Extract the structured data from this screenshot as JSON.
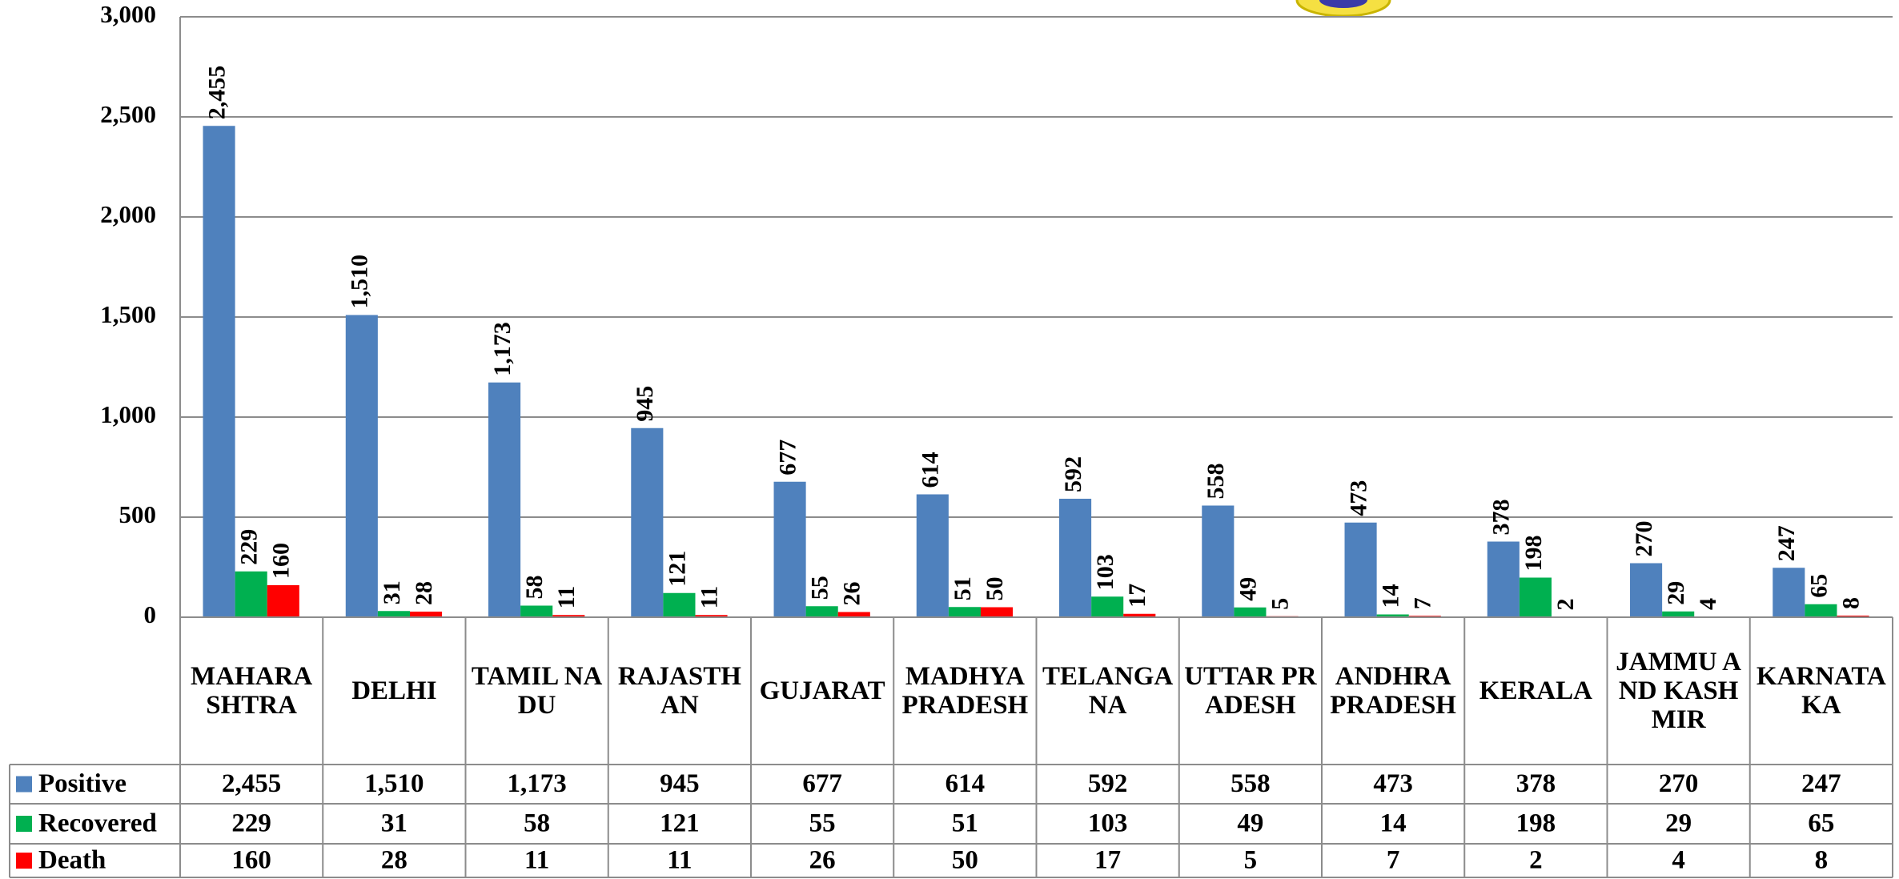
{
  "chart_data": {
    "type": "bar",
    "categories": [
      "MAHARASHTRA",
      "DELHI",
      "TAMIL NADU",
      "RAJASTHAN",
      "GUJARAT",
      "MADHYA PRADESH",
      "TELANGANA",
      "UTTAR PRADESH",
      "ANDHRA PRADESH",
      "KERALA",
      "JAMMU AND KASHMIR",
      "KARNATAKA"
    ],
    "series": [
      {
        "name": "Positive",
        "color": "#4f81bd",
        "values": [
          2455,
          1510,
          1173,
          945,
          677,
          614,
          592,
          558,
          473,
          378,
          270,
          247
        ],
        "value_labels": [
          "2,455",
          "1,510",
          "1,173",
          "945",
          "677",
          "614",
          "592",
          "558",
          "473",
          "378",
          "270",
          "247"
        ]
      },
      {
        "name": "Recovered",
        "color": "#00b050",
        "values": [
          229,
          31,
          58,
          121,
          55,
          51,
          103,
          49,
          14,
          198,
          29,
          65
        ],
        "value_labels": [
          "229",
          "31",
          "58",
          "121",
          "55",
          "51",
          "103",
          "49",
          "14",
          "198",
          "29",
          "65"
        ]
      },
      {
        "name": "Death",
        "color": "#ff0000",
        "values": [
          160,
          28,
          11,
          11,
          26,
          50,
          17,
          5,
          7,
          2,
          4,
          8
        ],
        "value_labels": [
          "160",
          "28",
          "11",
          "11",
          "26",
          "50",
          "17",
          "5",
          "7",
          "2",
          "4",
          "8"
        ]
      }
    ],
    "ylim": [
      0,
      3000
    ],
    "yticks": [
      0,
      500,
      {
        "value": 1000,
        "label": "1,000"
      },
      {
        "value": 1500,
        "label": "1,500"
      },
      {
        "value": 2000,
        "label": "2,000"
      },
      {
        "value": 2500,
        "label": "2,500"
      },
      {
        "value": 3000,
        "label": "3,000"
      }
    ],
    "grid": true
  }
}
